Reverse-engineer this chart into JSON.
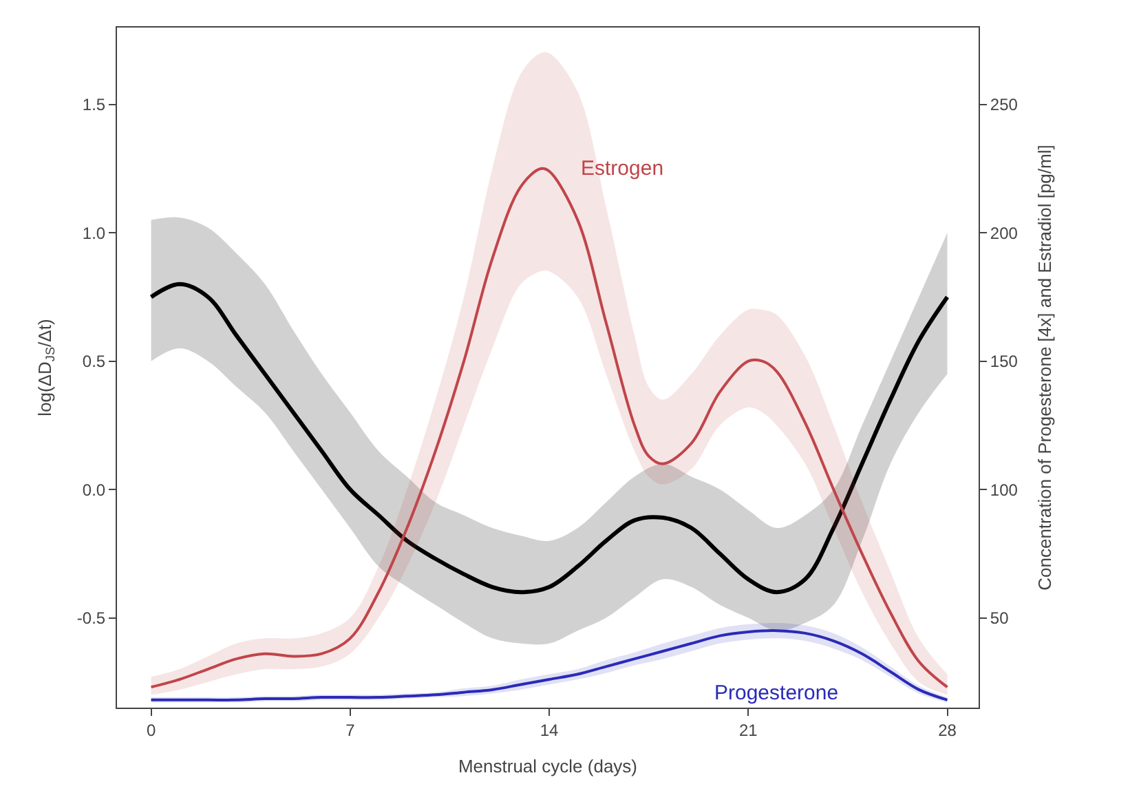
{
  "chart_data": {
    "type": "line",
    "xlabel": "Menstrual cycle (days)",
    "ylabel": "log(ΔD$_{JS}$/Δt)",
    "y2label": "Concentration of Progesterone [4x] and Estradiol [pg/ml]",
    "xlim": [
      -1.2,
      29.1
    ],
    "xticks": [
      0,
      7,
      14,
      21,
      28
    ],
    "ylim": [
      -0.85,
      1.8
    ],
    "yticks": [
      {
        "value": -0.5,
        "label": "-0.5"
      },
      {
        "value": 0,
        "label": "0.0"
      },
      {
        "value": 0.5,
        "label": "0.5"
      },
      {
        "value": 1,
        "label": "1.0"
      },
      {
        "value": 1.5,
        "label": "1.5"
      }
    ],
    "y2lim": [
      15,
      280
    ],
    "y2ticks": [
      50,
      100,
      150,
      200,
      250
    ],
    "legend": false,
    "line_style": "solid",
    "marker": "none",
    "series": [
      {
        "color": "#000000",
        "x": [
          0,
          1,
          2,
          3,
          4,
          5,
          6,
          7,
          8,
          9,
          10,
          11,
          12,
          13,
          14,
          15,
          16,
          17,
          18,
          19,
          20,
          21,
          22,
          23,
          24,
          25,
          26,
          27,
          28
        ],
        "values": [
          0.75,
          0.8,
          0.75,
          0.6,
          0.45,
          0.3,
          0.15,
          0,
          -0.1,
          -0.2,
          -0.27,
          -0.33,
          -0.38,
          -0.4,
          -0.38,
          -0.3,
          -0.2,
          -0.12,
          -0.11,
          -0.15,
          -0.25,
          -0.35,
          -0.4,
          -0.35,
          -0.15,
          0.1,
          0.35,
          0.58,
          0.75
        ],
        "lower": [
          0.5,
          0.55,
          0.5,
          0.4,
          0.3,
          0.15,
          0,
          -0.15,
          -0.3,
          -0.38,
          -0.45,
          -0.52,
          -0.58,
          -0.6,
          -0.6,
          -0.55,
          -0.5,
          -0.42,
          -0.35,
          -0.38,
          -0.45,
          -0.5,
          -0.55,
          -0.52,
          -0.45,
          -0.2,
          0.1,
          0.3,
          0.45
        ],
        "upper": [
          1.05,
          1.06,
          1.02,
          0.92,
          0.8,
          0.62,
          0.45,
          0.3,
          0.15,
          0.05,
          -0.05,
          -0.1,
          -0.15,
          -0.18,
          -0.2,
          -0.15,
          -0.05,
          0.05,
          0.1,
          0.05,
          0,
          -0.08,
          -0.15,
          -0.1,
          0,
          0.25,
          0.5,
          0.75,
          1.0
        ]
      },
      {
        "name": "Estrogen",
        "color": "#c0454a",
        "axis": "y2",
        "x": [
          0,
          1,
          2,
          3,
          4,
          5,
          6,
          7,
          8,
          9,
          10,
          11,
          12,
          13,
          13.7,
          14,
          15,
          16,
          17,
          17.5,
          18,
          19,
          20,
          21,
          21.5,
          22,
          23,
          24,
          25,
          26,
          27,
          28
        ],
        "values": [
          23,
          26,
          30,
          34,
          36,
          35,
          36,
          42,
          60,
          85,
          115,
          150,
          190,
          218,
          225,
          224,
          205,
          165,
          125,
          113,
          110,
          118,
          138,
          150,
          150,
          146,
          126,
          100,
          75,
          52,
          33,
          23
        ],
        "lower": [
          20,
          22,
          25,
          28,
          30,
          30,
          31,
          36,
          50,
          70,
          95,
          125,
          155,
          180,
          185,
          185,
          175,
          145,
          115,
          105,
          102,
          108,
          125,
          132,
          130,
          125,
          110,
          85,
          60,
          40,
          25,
          20
        ],
        "upper": [
          27,
          30,
          35,
          40,
          42,
          42,
          44,
          50,
          70,
          100,
          135,
          175,
          225,
          262,
          270,
          270,
          255,
          210,
          160,
          140,
          135,
          145,
          160,
          170,
          170,
          168,
          152,
          125,
          95,
          68,
          42,
          28
        ]
      },
      {
        "name": "Progesterone",
        "color": "#2a2ab8",
        "axis": "y2",
        "x": [
          0,
          1,
          2,
          3,
          4,
          5,
          6,
          7,
          8,
          9,
          10,
          11,
          12,
          13,
          14,
          15,
          16,
          17,
          18,
          19,
          20,
          21,
          22,
          23,
          24,
          25,
          26,
          27,
          28
        ],
        "values": [
          18,
          18,
          18,
          18,
          18.5,
          18.5,
          19,
          19,
          19,
          19.5,
          20,
          21,
          22,
          24,
          26,
          28,
          31,
          34,
          37,
          40,
          43,
          44.5,
          45,
          44,
          41,
          36,
          29,
          22,
          18
        ],
        "lower": [
          17,
          17,
          17,
          17,
          17.5,
          17.5,
          18,
          18,
          18,
          18.5,
          19,
          19.5,
          20.5,
          22,
          24,
          26,
          28.5,
          31.5,
          34,
          37,
          40,
          41.5,
          42,
          41,
          38,
          33.5,
          27,
          20.5,
          17
        ],
        "upper": [
          19,
          19,
          19,
          19,
          19.5,
          19.5,
          20,
          20,
          20,
          20.5,
          21,
          22.5,
          23.5,
          26,
          28,
          30,
          33.5,
          36.5,
          40,
          43,
          46,
          47.5,
          48,
          47,
          44,
          38.5,
          31,
          23.5,
          19
        ]
      }
    ]
  }
}
